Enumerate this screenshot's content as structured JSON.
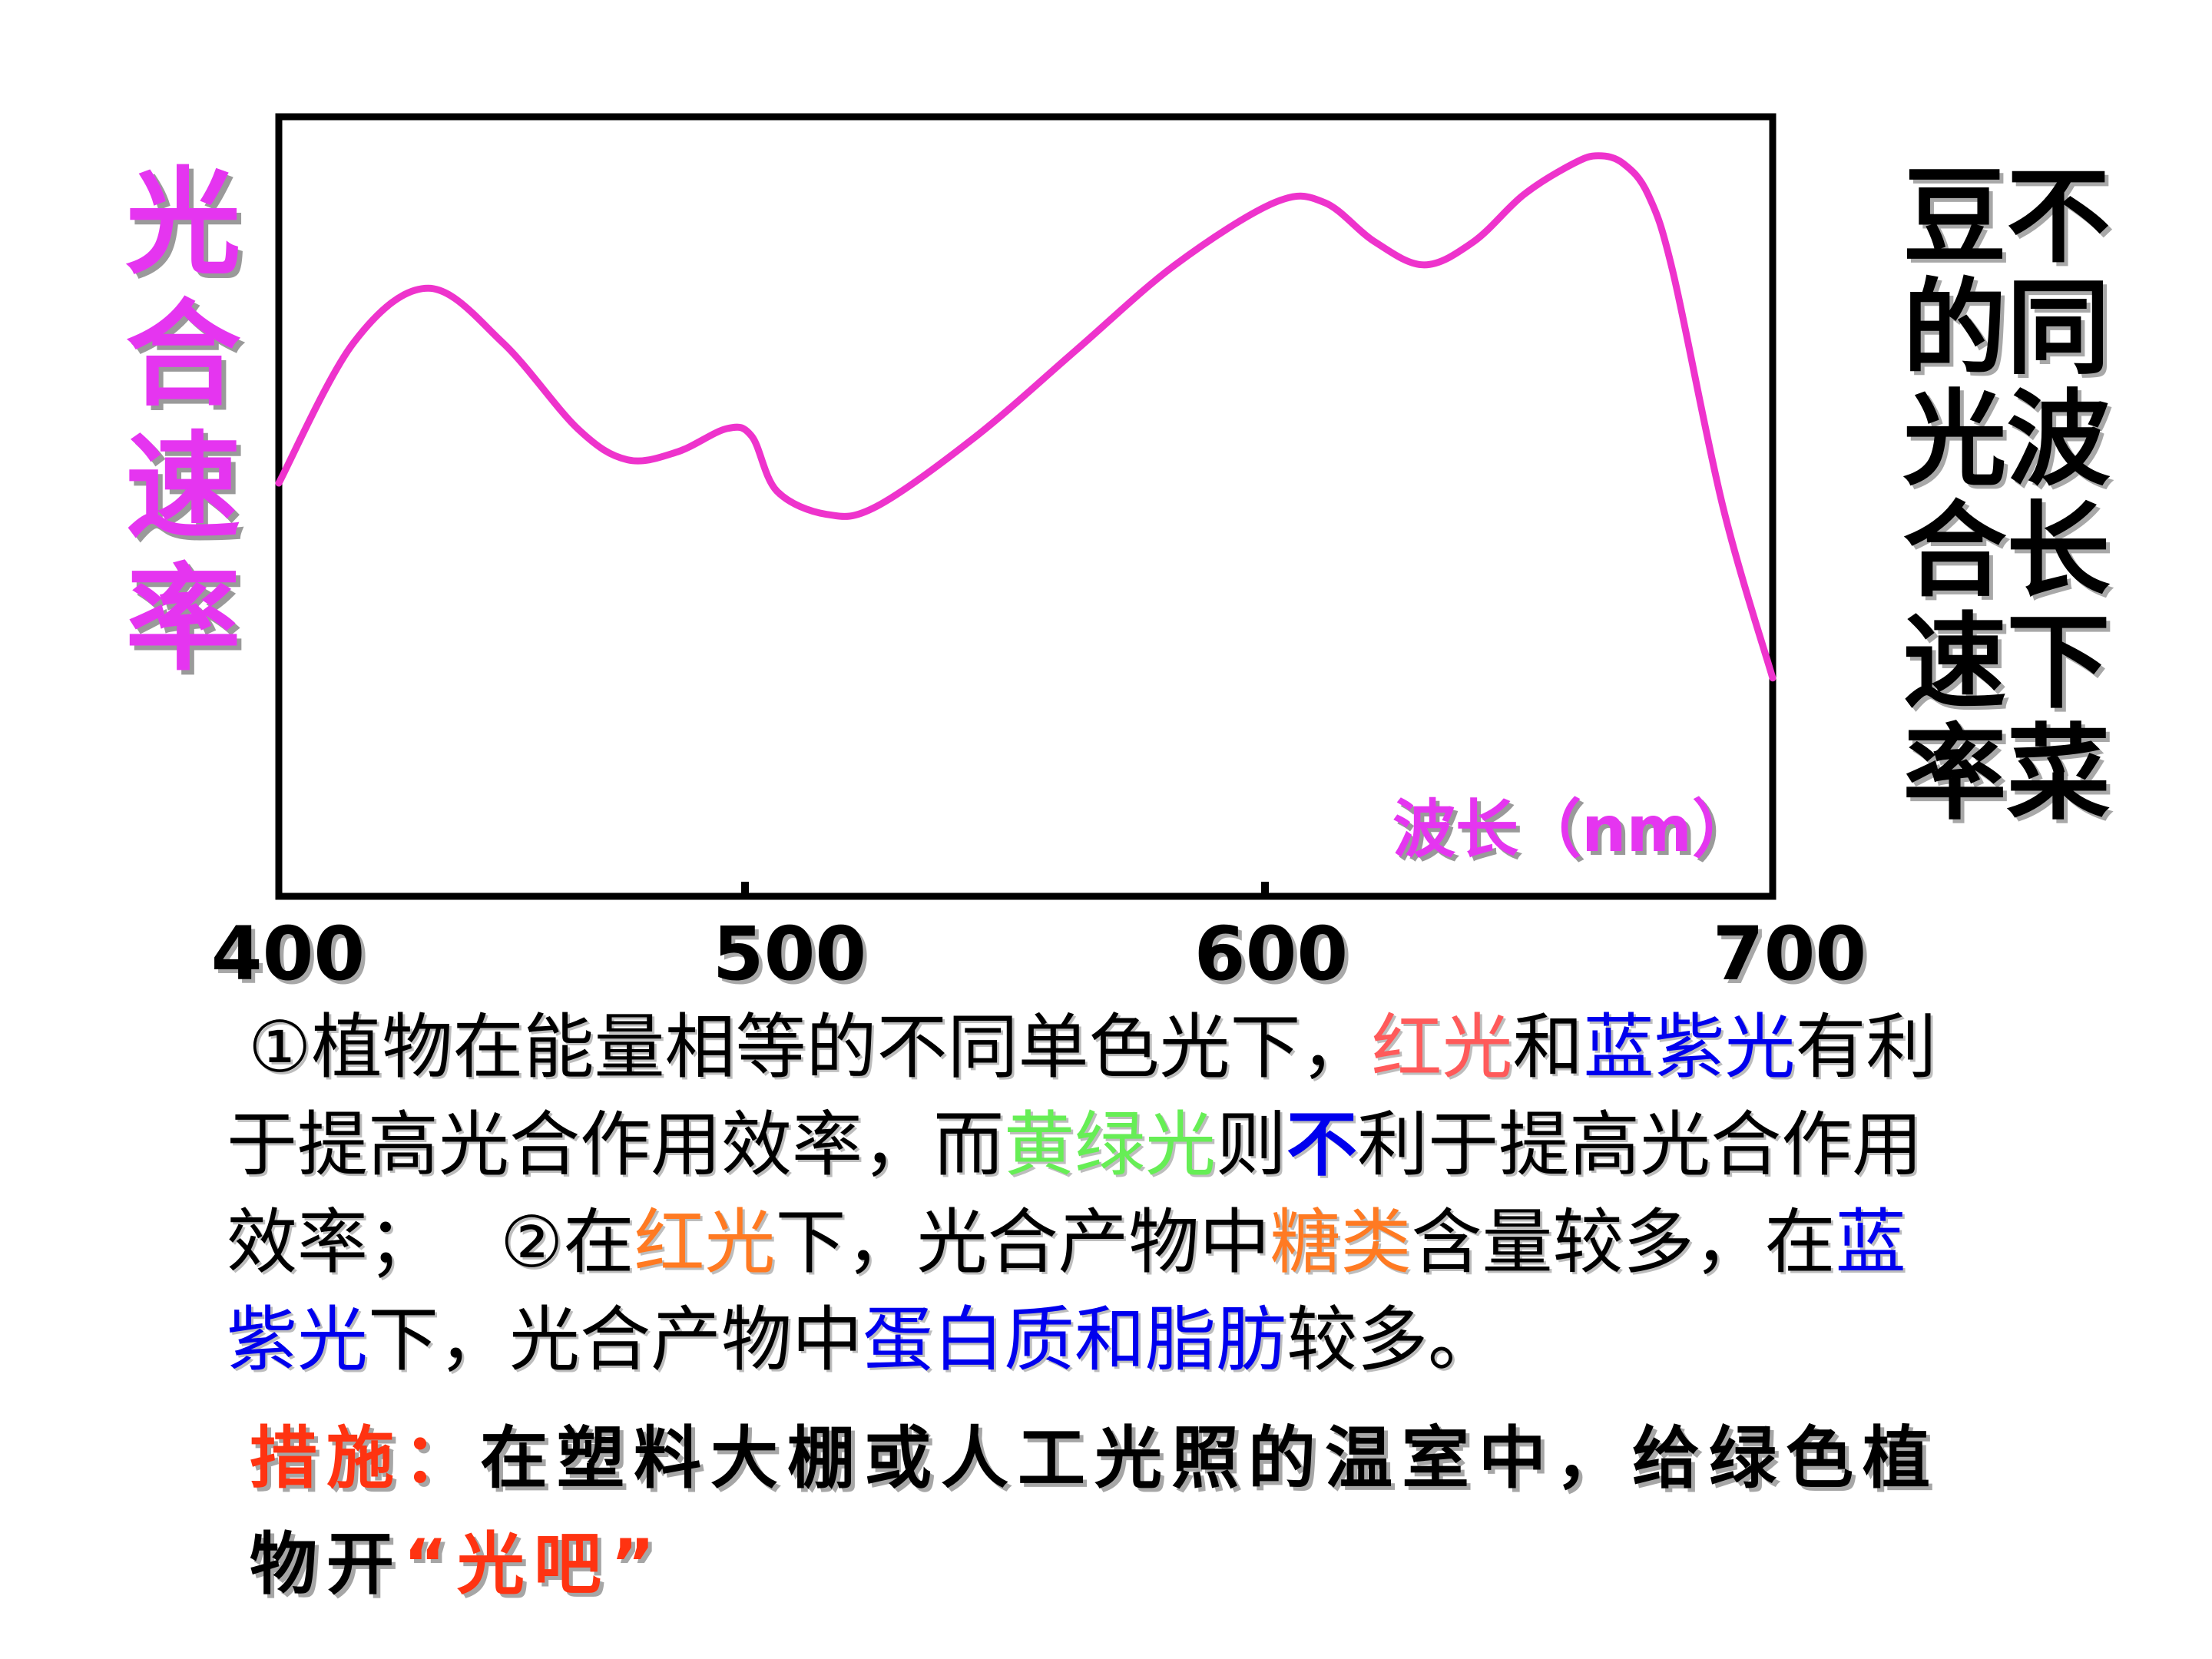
{
  "chart_data": {
    "type": "line",
    "ylabel": "光合速率",
    "xlabel": "波长（nm）",
    "x_ticks": [
      "400",
      "500",
      "600",
      "700"
    ],
    "xlim": [
      400,
      700
    ],
    "ylim": [
      0,
      100
    ],
    "grid": false,
    "series": [
      {
        "color": "#ee33cc",
        "x": [
          400,
          415,
          430,
          445,
          460,
          470,
          480,
          490,
          495,
          500,
          510,
          520,
          540,
          560,
          580,
          600,
          610,
          620,
          630,
          640,
          650,
          660,
          665,
          670,
          675,
          680,
          690,
          700
        ],
        "y": [
          53,
          71,
          78,
          71,
          60,
          56,
          57,
          60,
          59,
          52,
          49,
          50,
          59,
          70,
          81,
          89,
          89,
          84,
          81,
          84,
          90,
          94,
          95,
          94,
          90,
          80,
          50,
          28
        ]
      }
    ]
  },
  "side_title": "不同波长下菜豆的光合速率",
  "paragraph": {
    "p1_a": "①植物在能量相等的不同单色光下，",
    "p1_red": "红光",
    "p1_and": "和",
    "p1_blue": "蓝紫光",
    "p1_b": "有利于提高光合作用效率，而",
    "p1_green": "黄绿光",
    "p1_ze": "则",
    "p1_not": "不",
    "p1_c": "利于提高光合作用效率；",
    "p2_a": "②在",
    "p2_red": "红光",
    "p2_b": "下，光合产物中",
    "p2_sugar": "糖类",
    "p2_c": "含量较多，在",
    "p2_blue": "蓝紫光",
    "p2_d": "下，光合产物中",
    "p2_protein": "蛋白质和脂肪",
    "p2_e": "较多。"
  },
  "measure": {
    "label": "措施：",
    "text": "在塑料大棚或人工光照的温室中，给绿色植物开",
    "quote": "“光吧”"
  }
}
